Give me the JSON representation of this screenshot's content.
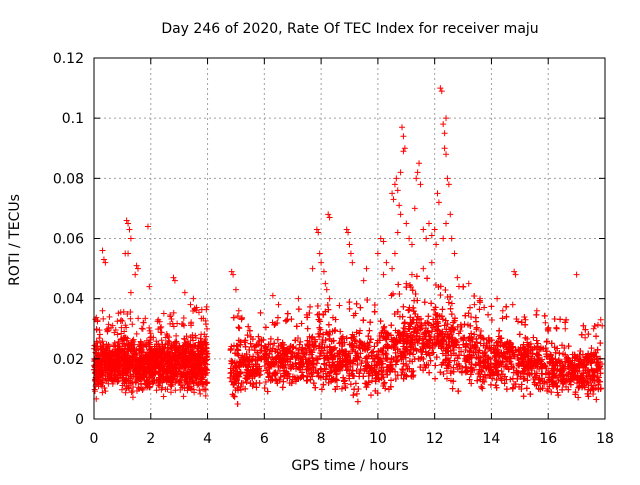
{
  "chart_data": {
    "type": "scatter",
    "title": "Day 246 of 2020, Rate Of TEC Index for receiver maju",
    "xlabel": "GPS time / hours",
    "ylabel": "ROTI / TECUs",
    "xlim": [
      0,
      18
    ],
    "ylim": [
      0,
      0.12
    ],
    "xticks": [
      0,
      2,
      4,
      6,
      8,
      10,
      12,
      14,
      16,
      18
    ],
    "xtick_labels": [
      "0",
      "2",
      "4",
      "6",
      "8",
      "10",
      "12",
      "14",
      "16",
      "18"
    ],
    "yticks": [
      0,
      0.02,
      0.04,
      0.06,
      0.08,
      0.1,
      0.12
    ],
    "ytick_labels": [
      "0",
      "0.02",
      "0.04",
      "0.06",
      "0.08",
      "0.1",
      "0.12"
    ],
    "grid": true,
    "marker": "+",
    "color": "#ff0000",
    "data_gap_hours": [
      4.0,
      4.8
    ],
    "series": [
      {
        "name": "ROTI",
        "points": [
          [
            0.3,
            0.056
          ],
          [
            0.35,
            0.053
          ],
          [
            0.4,
            0.052
          ],
          [
            0.3,
            0.036
          ],
          [
            0.5,
            0.03
          ],
          [
            1.15,
            0.066
          ],
          [
            1.2,
            0.065
          ],
          [
            1.25,
            0.063
          ],
          [
            1.2,
            0.055
          ],
          [
            1.1,
            0.055
          ],
          [
            1.3,
            0.06
          ],
          [
            1.5,
            0.051
          ],
          [
            1.55,
            0.05
          ],
          [
            1.45,
            0.048
          ],
          [
            1.3,
            0.042
          ],
          [
            1.9,
            0.064
          ],
          [
            1.95,
            0.044
          ],
          [
            2.8,
            0.047
          ],
          [
            2.85,
            0.046
          ],
          [
            3.2,
            0.042
          ],
          [
            3.4,
            0.038
          ],
          [
            3.5,
            0.04
          ],
          [
            4.85,
            0.049
          ],
          [
            4.9,
            0.048
          ],
          [
            5.0,
            0.043
          ],
          [
            5.1,
            0.036
          ],
          [
            6.3,
            0.041
          ],
          [
            6.5,
            0.038
          ],
          [
            7.2,
            0.04
          ],
          [
            7.7,
            0.05
          ],
          [
            7.85,
            0.063
          ],
          [
            7.9,
            0.062
          ],
          [
            7.95,
            0.055
          ],
          [
            8.0,
            0.052
          ],
          [
            8.1,
            0.049
          ],
          [
            8.15,
            0.045
          ],
          [
            8.2,
            0.043
          ],
          [
            8.25,
            0.068
          ],
          [
            8.3,
            0.067
          ],
          [
            8.3,
            0.04
          ],
          [
            8.9,
            0.063
          ],
          [
            8.95,
            0.062
          ],
          [
            9.0,
            0.058
          ],
          [
            9.05,
            0.055
          ],
          [
            9.1,
            0.052
          ],
          [
            9.5,
            0.046
          ],
          [
            9.6,
            0.05
          ],
          [
            10.0,
            0.055
          ],
          [
            10.1,
            0.06
          ],
          [
            10.2,
            0.059
          ],
          [
            10.3,
            0.052
          ],
          [
            10.2,
            0.048
          ],
          [
            10.5,
            0.075
          ],
          [
            10.55,
            0.073
          ],
          [
            10.6,
            0.078
          ],
          [
            10.65,
            0.08
          ],
          [
            10.7,
            0.076
          ],
          [
            10.75,
            0.071
          ],
          [
            10.8,
            0.068
          ],
          [
            10.85,
            0.097
          ],
          [
            10.9,
            0.094
          ],
          [
            10.95,
            0.09
          ],
          [
            10.9,
            0.089
          ],
          [
            10.8,
            0.082
          ],
          [
            10.7,
            0.062
          ],
          [
            10.6,
            0.055
          ],
          [
            10.5,
            0.05
          ],
          [
            11.0,
            0.065
          ],
          [
            11.1,
            0.06
          ],
          [
            11.2,
            0.058
          ],
          [
            11.3,
            0.07
          ],
          [
            11.35,
            0.08
          ],
          [
            11.4,
            0.082
          ],
          [
            11.45,
            0.085
          ],
          [
            11.5,
            0.078
          ],
          [
            11.6,
            0.063
          ],
          [
            11.7,
            0.06
          ],
          [
            11.8,
            0.065
          ],
          [
            11.9,
            0.061
          ],
          [
            12.0,
            0.063
          ],
          [
            12.05,
            0.058
          ],
          [
            12.1,
            0.075
          ],
          [
            12.15,
            0.072
          ],
          [
            12.2,
            0.11
          ],
          [
            12.25,
            0.109
          ],
          [
            12.3,
            0.098
          ],
          [
            12.35,
            0.095
          ],
          [
            12.4,
            0.1
          ],
          [
            12.35,
            0.09
          ],
          [
            12.4,
            0.088
          ],
          [
            12.45,
            0.08
          ],
          [
            12.5,
            0.078
          ],
          [
            12.55,
            0.068
          ],
          [
            12.6,
            0.06
          ],
          [
            12.4,
            0.065
          ],
          [
            12.3,
            0.06
          ],
          [
            11.9,
            0.052
          ],
          [
            11.6,
            0.05
          ],
          [
            11.2,
            0.048
          ],
          [
            11.0,
            0.045
          ],
          [
            12.7,
            0.055
          ],
          [
            12.8,
            0.047
          ],
          [
            13.2,
            0.045
          ],
          [
            13.4,
            0.038
          ],
          [
            13.6,
            0.04
          ],
          [
            14.2,
            0.04
          ],
          [
            14.4,
            0.036
          ],
          [
            14.8,
            0.049
          ],
          [
            14.85,
            0.048
          ],
          [
            14.75,
            0.038
          ],
          [
            15.2,
            0.033
          ],
          [
            15.6,
            0.036
          ],
          [
            15.9,
            0.032
          ],
          [
            16.3,
            0.03
          ],
          [
            16.6,
            0.03
          ],
          [
            17.0,
            0.048
          ],
          [
            17.3,
            0.027
          ],
          [
            17.6,
            0.03
          ],
          [
            17.85,
            0.033
          ],
          [
            17.9,
            0.031
          ]
        ]
      }
    ],
    "dense_band": {
      "note": "dense red band of ROTI samples, base and upper envelope in TECUs by hour",
      "segments": [
        {
          "x_range": [
            0.0,
            4.0
          ],
          "low": [
            [
              0,
              0.007
            ],
            [
              1,
              0.008
            ],
            [
              2,
              0.008
            ],
            [
              3,
              0.007
            ],
            [
              4,
              0.006
            ]
          ],
          "high": [
            [
              0,
              0.028
            ],
            [
              1,
              0.03
            ],
            [
              2,
              0.029
            ],
            [
              3,
              0.03
            ],
            [
              4,
              0.032
            ]
          ]
        },
        {
          "x_range": [
            4.8,
            17.9
          ],
          "low": [
            [
              4.8,
              0.005
            ],
            [
              6,
              0.007
            ],
            [
              8,
              0.008
            ],
            [
              10,
              0.006
            ],
            [
              11,
              0.01
            ],
            [
              12,
              0.011
            ],
            [
              13,
              0.009
            ],
            [
              14,
              0.008
            ],
            [
              16,
              0.006
            ],
            [
              17.9,
              0.005
            ]
          ],
          "high": [
            [
              4.8,
              0.028
            ],
            [
              6,
              0.031
            ],
            [
              8,
              0.032
            ],
            [
              9,
              0.033
            ],
            [
              10,
              0.034
            ],
            [
              11,
              0.043
            ],
            [
              12,
              0.041
            ],
            [
              13,
              0.038
            ],
            [
              14,
              0.032
            ],
            [
              15,
              0.031
            ],
            [
              16,
              0.029
            ],
            [
              17,
              0.026
            ],
            [
              17.9,
              0.027
            ]
          ]
        }
      ]
    }
  }
}
